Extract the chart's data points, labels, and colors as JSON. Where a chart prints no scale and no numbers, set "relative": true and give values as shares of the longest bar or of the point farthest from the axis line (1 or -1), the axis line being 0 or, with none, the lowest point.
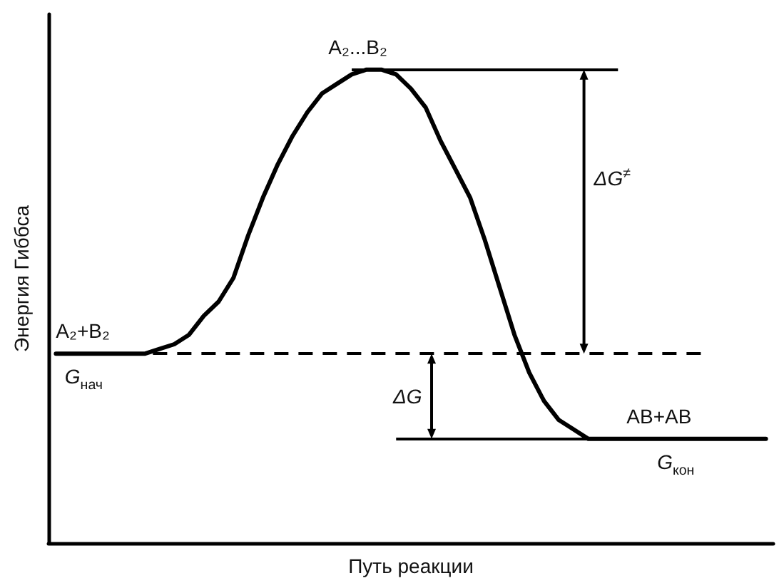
{
  "chart_data": {
    "type": "line",
    "relative": true,
    "xlabel": "Путь реакции",
    "ylabel": "Энергия Гиббса",
    "categories": [
      null,
      null,
      null,
      null,
      null,
      null,
      null,
      null,
      null,
      null,
      null,
      null,
      null,
      null,
      null,
      null,
      null,
      null,
      null,
      null,
      null,
      null,
      null,
      null,
      null,
      null,
      null,
      null,
      null,
      null,
      null,
      null,
      null,
      null,
      null,
      null,
      null,
      null,
      null,
      null,
      null,
      null,
      null,
      null,
      null,
      null,
      null,
      null,
      null
    ],
    "series": [
      {
        "color": "#000000",
        "values": [
          0.4,
          0.4,
          0.4,
          0.4,
          0.4,
          0.4,
          0.4,
          0.41,
          0.42,
          0.44,
          0.48,
          0.51,
          0.56,
          0.65,
          0.73,
          0.8,
          0.86,
          0.91,
          0.95,
          0.97,
          0.99,
          1,
          1,
          0.99,
          0.96,
          0.92,
          0.85,
          0.79,
          0.73,
          0.64,
          0.54,
          0.44,
          0.36,
          0.3,
          0.26,
          0.24,
          0.22,
          0.22,
          0.22,
          0.22,
          0.22,
          0.22,
          0.22,
          0.22,
          0.22,
          0.22,
          0.22,
          0.22,
          0.22
        ]
      }
    ],
    "marker": "none",
    "line_style": "solid",
    "tick_labels": false,
    "ref_lines": [
      {
        "axis": "y",
        "value": 1,
        "color": "#000000",
        "line_style": "solid"
      },
      {
        "axis": "y",
        "value": 0.4,
        "label": "G$_{нач}$",
        "color": "#000000",
        "line_style": "dashed"
      },
      {
        "axis": "y",
        "value": 0.22,
        "label": "G$_{кон}$",
        "color": "#000000",
        "line_style": "solid"
      }
    ],
    "annotations": [
      "A₂+B₂",
      "A₂...B₂",
      "AB+AB",
      "ΔG$^{≠}$",
      "ΔG"
    ]
  }
}
